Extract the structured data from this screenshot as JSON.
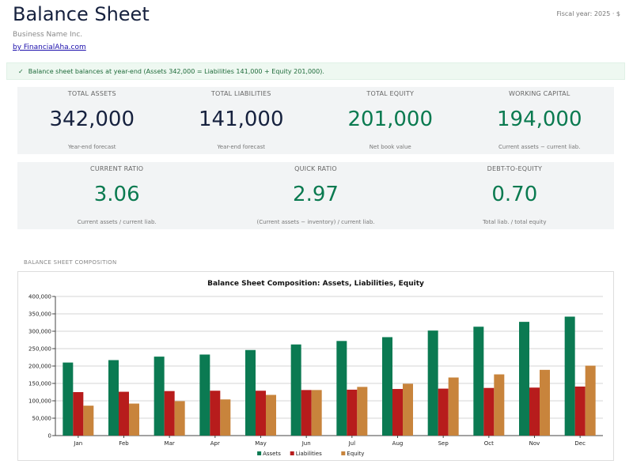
{
  "header": {
    "title": "Balance Sheet",
    "fiscal": "Fiscal year: 2025 · $",
    "business": "Business Name Inc.",
    "link": "by FinancialAha.com"
  },
  "banner": {
    "check": "✓",
    "text": "Balance sheet balances at year-end (Assets 342,000 = Liabilities 141,000 + Equity 201,000)."
  },
  "kpis": [
    {
      "label": "TOTAL ASSETS",
      "value": "342,000",
      "sub": "Year-end forecast"
    },
    {
      "label": "TOTAL LIABILITIES",
      "value": "141,000",
      "sub": "Year-end forecast"
    },
    {
      "label": "TOTAL EQUITY",
      "value": "201,000",
      "sub": "Net book value"
    },
    {
      "label": "WORKING CAPITAL",
      "value": "194,000",
      "sub": "Current assets − current liab."
    }
  ],
  "ratios": [
    {
      "label": "CURRENT RATIO",
      "value": "3.06",
      "sub": "Current assets / current liab."
    },
    {
      "label": "QUICK RATIO",
      "value": "2.97",
      "sub": "(Current assets − inventory) / current liab."
    },
    {
      "label": "DEBT-TO-EQUITY",
      "value": "0.70",
      "sub": "Total liab. / total equity"
    }
  ],
  "section_label": "BALANCE SHEET COMPOSITION",
  "colors": {
    "assets": "#0b7a52",
    "liabilities": "#b71c1c",
    "equity": "#c8843c",
    "navy": "#16213e",
    "green": "#0a7a50"
  },
  "chart_data": {
    "type": "bar",
    "title": "Balance Sheet Composition: Assets, Liabilities, Equity",
    "categories": [
      "Jan",
      "Feb",
      "Mar",
      "Apr",
      "May",
      "Jun",
      "Jul",
      "Aug",
      "Sep",
      "Oct",
      "Nov",
      "Dec"
    ],
    "series": [
      {
        "name": "Assets",
        "color": "#0b7a52",
        "values": [
          210000,
          217000,
          227000,
          233000,
          246000,
          262000,
          272000,
          283000,
          302000,
          313000,
          327000,
          342000
        ]
      },
      {
        "name": "Liabilities",
        "color": "#b71c1c",
        "values": [
          125000,
          126000,
          128000,
          129000,
          129000,
          131000,
          132000,
          134000,
          135000,
          137000,
          138000,
          141000
        ]
      },
      {
        "name": "Equity",
        "color": "#c8843c",
        "values": [
          86000,
          92000,
          99000,
          104000,
          117000,
          131000,
          140000,
          149000,
          167000,
          176000,
          189000,
          201000
        ]
      }
    ],
    "ylim": [
      0,
      400000
    ],
    "yticks": [
      "0",
      "50,000",
      "100,000",
      "150,000",
      "200,000",
      "250,000",
      "300,000",
      "350,000",
      "400,000"
    ],
    "ytick_values": [
      0,
      50000,
      100000,
      150000,
      200000,
      250000,
      300000,
      350000,
      400000
    ],
    "grid": true,
    "legend": "bottom"
  }
}
